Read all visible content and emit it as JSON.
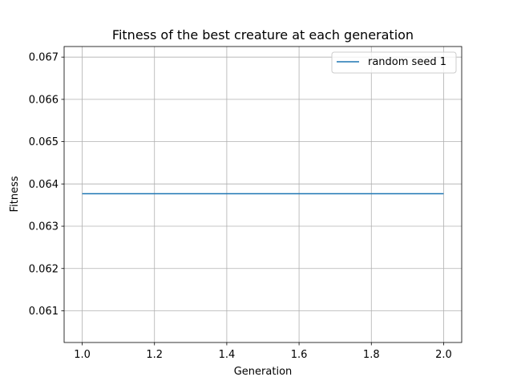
{
  "chart_data": {
    "type": "line",
    "title": "Fitness of the best creature at each generation",
    "xlabel": "Generation",
    "ylabel": "Fitness",
    "xlim": [
      0.95,
      2.05
    ],
    "ylim": [
      0.06025,
      0.06725
    ],
    "xticks": [
      1.0,
      1.2,
      1.4,
      1.6,
      1.8,
      2.0
    ],
    "xtick_labels": [
      "1.0",
      "1.2",
      "1.4",
      "1.6",
      "1.8",
      "2.0"
    ],
    "yticks": [
      0.061,
      0.062,
      0.063,
      0.064,
      0.065,
      0.066,
      0.067
    ],
    "ytick_labels": [
      "0.061",
      "0.062",
      "0.063",
      "0.064",
      "0.065",
      "0.066",
      "0.067"
    ],
    "grid": true,
    "legend_position": "top-right",
    "series": [
      {
        "name": "random seed 1",
        "color": "#1f77b4",
        "x": [
          1,
          2
        ],
        "y": [
          0.06377,
          0.06377
        ]
      }
    ]
  }
}
